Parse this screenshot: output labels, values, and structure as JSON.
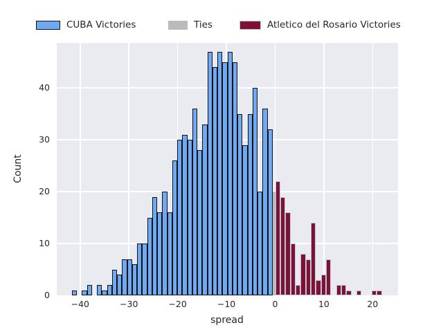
{
  "legend": {
    "items": [
      {
        "label": "CUBA Victories",
        "fill": "#6FA9F1",
        "edge": "#111111"
      },
      {
        "label": "Ties",
        "fill": "#BBBBBB",
        "edge": null
      },
      {
        "label": "Atletico del Rosario Victories",
        "fill": "#801231",
        "edge": "#B9C6DB"
      }
    ]
  },
  "chart_data": {
    "type": "bar",
    "subtype": "histogram",
    "title": "",
    "xlabel": "spread",
    "ylabel": "Count",
    "xlim": [
      -44.8,
      25.2
    ],
    "ylim": [
      0,
      48.7
    ],
    "xticks": [
      -40,
      -30,
      -20,
      -10,
      0,
      10,
      20
    ],
    "yticks": [
      0,
      10,
      20,
      30,
      40
    ],
    "grid": true,
    "plot_bg": "#EAEAF1",
    "grid_color": "#ffffff",
    "legend_position": "top",
    "series": [
      {
        "name": "CUBA Victories",
        "color": "#6FA9F1",
        "edge": "#111111",
        "bin_start": -41.7,
        "bin_width": 1.03,
        "counts": [
          1,
          0,
          1,
          2,
          0,
          2,
          1,
          2,
          5,
          4,
          7,
          7,
          6,
          10,
          10,
          15,
          19,
          16,
          20,
          16,
          26,
          30,
          31,
          30,
          36,
          28,
          33,
          47,
          44,
          47,
          45,
          47,
          45,
          35,
          29,
          35,
          40,
          20,
          36,
          32
        ]
      },
      {
        "name": "Ties",
        "color": "#BBBBBB",
        "edge": null,
        "bin_start": -0.54,
        "bin_width": 0.57,
        "counts": [
          20
        ]
      },
      {
        "name": "Atletico del Rosario Victories",
        "color": "#801231",
        "edge": "#B9C6DB",
        "bin_start": 0.03,
        "bin_width": 1.04,
        "counts": [
          22,
          19,
          16,
          10,
          2,
          8,
          7,
          14,
          3,
          4,
          7,
          0,
          2,
          2,
          1,
          0,
          1,
          0,
          0,
          1,
          1
        ]
      }
    ]
  }
}
